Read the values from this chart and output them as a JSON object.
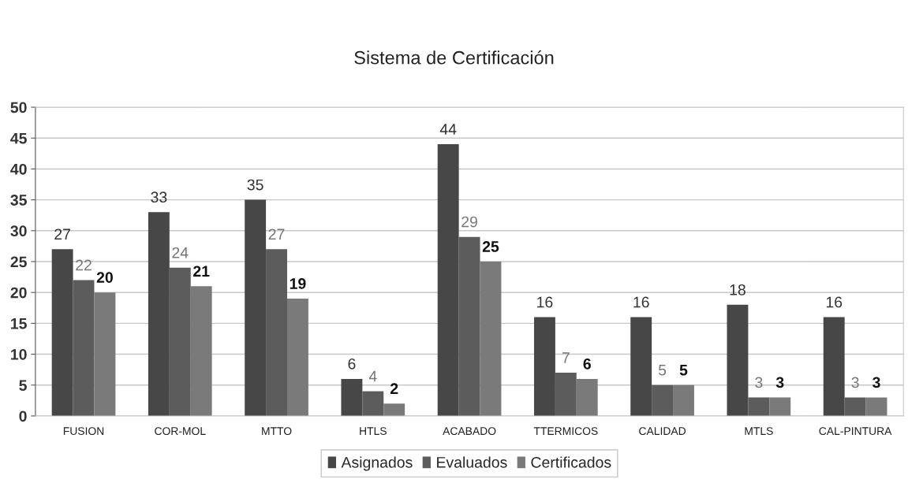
{
  "chart_data": {
    "type": "bar",
    "title": "Sistema de Certificación",
    "categories": [
      "FUSION",
      "COR-MOL",
      "MTTO",
      "HTLS",
      "ACABADO",
      "TTERMICOS",
      "CALIDAD",
      "MTLS",
      "CAL-PINTURA"
    ],
    "series": [
      {
        "name": "Asignados",
        "color": "#474747",
        "values": [
          27,
          33,
          35,
          6,
          44,
          16,
          16,
          18,
          16
        ]
      },
      {
        "name": "Evaluados",
        "color": "#5c5c5c",
        "values": [
          22,
          24,
          27,
          4,
          29,
          7,
          5,
          3,
          3
        ]
      },
      {
        "name": "Certificados",
        "color": "#7a7a7a",
        "values": [
          20,
          21,
          19,
          2,
          25,
          6,
          5,
          3,
          3
        ]
      }
    ],
    "ylim": [
      0,
      50
    ],
    "yticks": [
      0,
      5,
      10,
      15,
      20,
      25,
      30,
      35,
      40,
      45,
      50
    ],
    "grid": "y",
    "legend": "bottom",
    "data_labels": true
  }
}
